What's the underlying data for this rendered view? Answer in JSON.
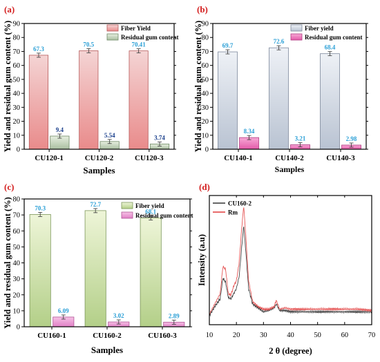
{
  "colors": {
    "panel_letter": "#d42020",
    "value_label": "#2a9fd6",
    "value_label_dark": "#1a3f8c",
    "line_a": "#333333",
    "line_b": "#e03a3a"
  },
  "chart_data": [
    {
      "type": "bar",
      "panel_label": "(a)",
      "ylabel": "Yield and residual gum content (%)",
      "xlabel": "Samples",
      "ylim": [
        0,
        90
      ],
      "yticks": [
        "0",
        "10",
        "20",
        "30",
        "40",
        "50",
        "60",
        "70",
        "80",
        "90"
      ],
      "categories": [
        "CU120-1",
        "CU120-2",
        "CU120-3"
      ],
      "legend_position": "top-right",
      "series": [
        {
          "name": "Fiber Yield",
          "values": [
            67.3,
            70.5,
            70.41
          ],
          "labels": [
            "67.3",
            "70.5",
            "70.41"
          ],
          "color_top": "#f4d4d4",
          "color_bottom": "#e98b8b",
          "edge": "#b65b5b"
        },
        {
          "name": "Residual gum content",
          "values": [
            9.4,
            5.54,
            3.74
          ],
          "labels": [
            "9.4",
            "5.54",
            "3.74"
          ],
          "color_top": "#e7efe0",
          "color_bottom": "#a9bea0",
          "edge": "#6f8a66"
        }
      ]
    },
    {
      "type": "bar",
      "panel_label": "(b)",
      "ylabel": "Yield and residual gum content (%)",
      "xlabel": "Samples",
      "ylim": [
        0,
        90
      ],
      "yticks": [
        "0",
        "10",
        "20",
        "30",
        "40",
        "50",
        "60",
        "70",
        "80",
        "90"
      ],
      "categories": [
        "CU140-1",
        "CU140-2",
        "CU140-3"
      ],
      "legend_position": "top-right",
      "series": [
        {
          "name": "Fiber yield",
          "values": [
            69.7,
            72.6,
            68.4
          ],
          "labels": [
            "69.7",
            "72.6",
            "68.4"
          ],
          "color_top": "#eef1f6",
          "color_bottom": "#b9c3d2",
          "edge": "#7c879a"
        },
        {
          "name": "Residual gum content",
          "values": [
            8.34,
            3.21,
            2.98
          ],
          "labels": [
            "8.34",
            "3.21",
            "2.98"
          ],
          "color_top": "#f7a9d6",
          "color_bottom": "#e35aa9",
          "edge": "#b03a80"
        }
      ]
    },
    {
      "type": "bar",
      "panel_label": "(c)",
      "ylabel": "Yield and residual gum content (%)",
      "xlabel": "Samples",
      "ylim": [
        0,
        80
      ],
      "yticks": [
        "0",
        "10",
        "20",
        "30",
        "40",
        "50",
        "60",
        "70",
        "80"
      ],
      "categories": [
        "CU160-1",
        "CU160-2",
        "CU160-3"
      ],
      "legend_position": "top-right",
      "series": [
        {
          "name": "Fiber yield",
          "values": [
            70.3,
            72.7,
            68.1
          ],
          "labels": [
            "70.3",
            "72.7",
            "68.1"
          ],
          "color_top": "#eef5d8",
          "color_bottom": "#b3cf88",
          "edge": "#7c9659"
        },
        {
          "name": "Residual gum content",
          "values": [
            6.09,
            3.02,
            2.89
          ],
          "labels": [
            "6.09",
            "3.02",
            "2.89"
          ],
          "color_top": "#f6c2e6",
          "color_bottom": "#e07fc5",
          "edge": "#b05596"
        }
      ]
    },
    {
      "type": "line",
      "panel_label": "(d)",
      "xlabel": "2 θ (degree)",
      "ylabel": "Intensity (a.u)",
      "xlim": [
        10,
        70
      ],
      "xticks": [
        "10",
        "20",
        "30",
        "40",
        "50",
        "60",
        "70"
      ],
      "legend_position": "top-left",
      "x": [
        10,
        12,
        14,
        15,
        16,
        17,
        18,
        19,
        20,
        21,
        22,
        22.7,
        23.5,
        24.5,
        26,
        28,
        30,
        32,
        34,
        34.7,
        36,
        38,
        40,
        45,
        50,
        55,
        60,
        65,
        70
      ],
      "series": [
        {
          "name": "CU160-2",
          "values": [
            0.07,
            0.14,
            0.2,
            0.36,
            0.33,
            0.21,
            0.2,
            0.24,
            0.28,
            0.37,
            0.61,
            0.77,
            0.56,
            0.28,
            0.16,
            0.13,
            0.1,
            0.11,
            0.13,
            0.16,
            0.11,
            0.11,
            0.1,
            0.1,
            0.1,
            0.1,
            0.1,
            0.1,
            0.1
          ]
        },
        {
          "name": "Rm",
          "values": [
            0.08,
            0.16,
            0.24,
            0.45,
            0.43,
            0.24,
            0.23,
            0.3,
            0.34,
            0.48,
            0.76,
            0.92,
            0.68,
            0.34,
            0.18,
            0.14,
            0.12,
            0.12,
            0.14,
            0.19,
            0.12,
            0.13,
            0.12,
            0.12,
            0.12,
            0.12,
            0.12,
            0.12,
            0.11
          ]
        }
      ]
    }
  ]
}
